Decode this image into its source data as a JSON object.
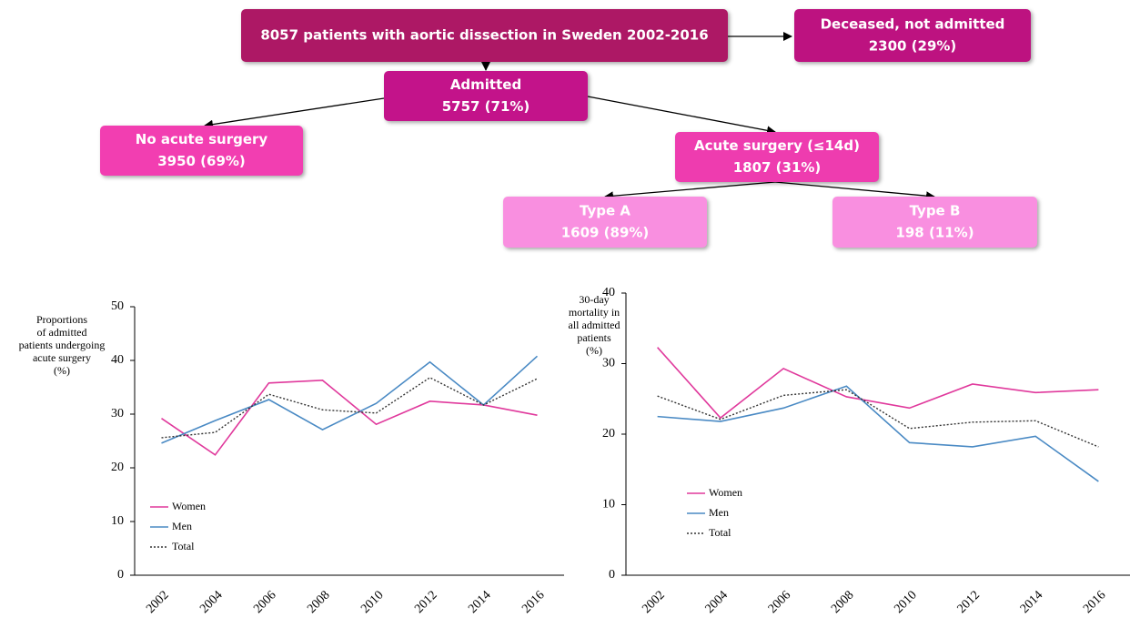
{
  "flowchart": {
    "nodes": [
      {
        "label": "8057 patients with aortic dissection in Sweden 2002-2016",
        "value": null
      },
      {
        "label": "Deceased, not admitted",
        "value": "2300 (29%)"
      },
      {
        "label": "Admitted",
        "value": "5757 (71%)"
      },
      {
        "label": "No acute surgery",
        "value": "3950 (69%)"
      },
      {
        "label": "Acute surgery (≤14d)",
        "value": "1807 (31%)"
      },
      {
        "label": "Type A",
        "value": "1609 (89%)"
      },
      {
        "label": "Type B",
        "value": "198 (11%)"
      }
    ]
  },
  "chart_data": [
    {
      "type": "line",
      "y_label": [
        "Proportions",
        "of admitted",
        "patients undergoing",
        "acute surgery",
        "(%)"
      ],
      "categories": [
        "2002",
        "2004",
        "2006",
        "2008",
        "2010",
        "2012",
        "2014",
        "2016"
      ],
      "ylim": [
        0,
        50
      ],
      "yticks": [
        0,
        10,
        20,
        30,
        40,
        50
      ],
      "series": [
        {
          "name": "Women",
          "color": "#e0399c",
          "values": [
            29.2,
            22.4,
            35.8,
            36.3,
            28.1,
            32.4,
            31.7,
            29.8
          ]
        },
        {
          "name": "Men",
          "color": "#4a8ac4",
          "values": [
            24.6,
            28.8,
            32.7,
            27.1,
            32.0,
            39.7,
            31.7,
            40.8
          ]
        },
        {
          "name": "Total",
          "color": "#333333",
          "dashed": true,
          "values": [
            25.6,
            26.6,
            33.7,
            30.8,
            30.2,
            36.8,
            31.7,
            36.6
          ]
        }
      ]
    },
    {
      "type": "line",
      "y_label": [
        "30-day",
        "mortality in",
        "all admitted",
        "patients",
        "(%)"
      ],
      "categories": [
        "2002",
        "2004",
        "2006",
        "2008",
        "2010",
        "2012",
        "2014",
        "2016"
      ],
      "ylim": [
        0,
        40
      ],
      "yticks": [
        0,
        10,
        20,
        30,
        40
      ],
      "series": [
        {
          "name": "Women",
          "color": "#e0399c",
          "values": [
            32.3,
            22.3,
            29.3,
            25.3,
            23.7,
            27.1,
            25.9,
            26.3
          ]
        },
        {
          "name": "Men",
          "color": "#4a8ac4",
          "values": [
            22.5,
            21.8,
            23.7,
            26.8,
            18.8,
            18.2,
            19.7,
            13.3
          ]
        },
        {
          "name": "Total",
          "color": "#333333",
          "dashed": true,
          "values": [
            25.4,
            22.1,
            25.5,
            26.3,
            20.8,
            21.7,
            21.9,
            18.2
          ]
        }
      ]
    }
  ]
}
